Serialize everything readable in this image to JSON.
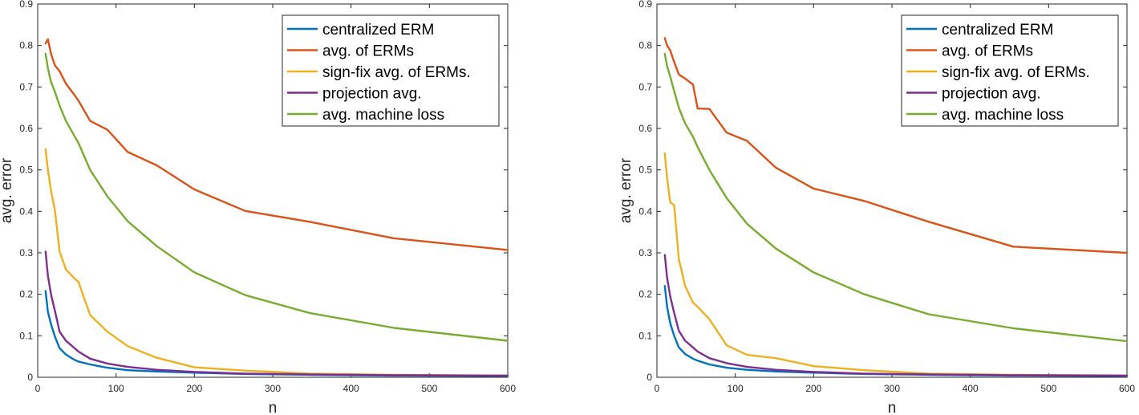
{
  "chart_data": [
    {
      "type": "line",
      "xlabel": "n",
      "ylabel": "avg. error",
      "xlim": [
        0,
        600
      ],
      "ylim": [
        0,
        0.9
      ],
      "xticks": [
        0,
        100,
        200,
        300,
        400,
        500,
        600
      ],
      "yticks": [
        0,
        0.1,
        0.2,
        0.3,
        0.4,
        0.5,
        0.6,
        0.7,
        0.8,
        0.9
      ],
      "grid": false,
      "legend_position": "top-right",
      "series": [
        {
          "name": "centralized ERM",
          "color": "#0072BD",
          "x": [
            10,
            13,
            17,
            22,
            28,
            36,
            46,
            52,
            67,
            89,
            115,
            152,
            200,
            265,
            347,
            455,
            600
          ],
          "y": [
            0.208,
            0.158,
            0.128,
            0.098,
            0.07,
            0.055,
            0.043,
            0.038,
            0.031,
            0.023,
            0.017,
            0.014,
            0.011,
            0.008,
            0.006,
            0.004,
            0.003
          ]
        },
        {
          "name": "avg. of ERMs",
          "color": "#D95319",
          "x": [
            10,
            13,
            17,
            22,
            28,
            36,
            46,
            52,
            67,
            89,
            115,
            152,
            200,
            265,
            347,
            455,
            600
          ],
          "y": [
            0.805,
            0.815,
            0.78,
            0.752,
            0.738,
            0.708,
            0.683,
            0.667,
            0.618,
            0.597,
            0.543,
            0.511,
            0.453,
            0.401,
            0.375,
            0.335,
            0.307
          ]
        },
        {
          "name": "sign-fix avg. of ERMs.",
          "color": "#EDB120",
          "x": [
            10,
            13,
            17,
            22,
            28,
            36,
            46,
            52,
            67,
            89,
            115,
            152,
            200,
            265,
            347,
            455,
            600
          ],
          "y": [
            0.55,
            0.5,
            0.45,
            0.402,
            0.303,
            0.26,
            0.24,
            0.23,
            0.15,
            0.11,
            0.075,
            0.047,
            0.024,
            0.016,
            0.009,
            0.006,
            0.004
          ]
        },
        {
          "name": "projection avg.",
          "color": "#7E2F8E",
          "x": [
            10,
            13,
            17,
            22,
            28,
            36,
            46,
            52,
            67,
            89,
            115,
            152,
            200,
            265,
            347,
            455,
            600
          ],
          "y": [
            0.303,
            0.245,
            0.2,
            0.16,
            0.11,
            0.088,
            0.072,
            0.062,
            0.045,
            0.033,
            0.025,
            0.018,
            0.013,
            0.009,
            0.007,
            0.005,
            0.004
          ]
        },
        {
          "name": "avg. machine loss",
          "color": "#77AC30",
          "x": [
            10,
            13,
            17,
            22,
            28,
            36,
            46,
            52,
            67,
            89,
            115,
            152,
            200,
            265,
            347,
            455,
            600
          ],
          "y": [
            0.78,
            0.745,
            0.712,
            0.688,
            0.655,
            0.618,
            0.585,
            0.565,
            0.5,
            0.436,
            0.376,
            0.316,
            0.253,
            0.198,
            0.155,
            0.119,
            0.088
          ]
        }
      ]
    },
    {
      "type": "line",
      "xlabel": "n",
      "ylabel": "avg. error",
      "xlim": [
        0,
        600
      ],
      "ylim": [
        0,
        0.9
      ],
      "xticks": [
        0,
        100,
        200,
        300,
        400,
        500,
        600
      ],
      "yticks": [
        0,
        0.1,
        0.2,
        0.3,
        0.4,
        0.5,
        0.6,
        0.7,
        0.8,
        0.9
      ],
      "grid": false,
      "legend_position": "top-right",
      "series": [
        {
          "name": "centralized ERM",
          "color": "#0072BD",
          "x": [
            10,
            13,
            17,
            22,
            28,
            36,
            46,
            52,
            67,
            89,
            115,
            152,
            200,
            265,
            347,
            455,
            600
          ],
          "y": [
            0.22,
            0.17,
            0.13,
            0.1,
            0.072,
            0.056,
            0.045,
            0.04,
            0.031,
            0.023,
            0.018,
            0.014,
            0.011,
            0.008,
            0.006,
            0.004,
            0.003
          ]
        },
        {
          "name": "avg. of ERMs",
          "color": "#D95319",
          "x": [
            10,
            13,
            17,
            22,
            28,
            36,
            46,
            52,
            67,
            89,
            115,
            152,
            200,
            265,
            347,
            455,
            600
          ],
          "y": [
            0.818,
            0.8,
            0.788,
            0.76,
            0.73,
            0.72,
            0.706,
            0.648,
            0.647,
            0.59,
            0.57,
            0.505,
            0.455,
            0.425,
            0.375,
            0.315,
            0.3
          ]
        },
        {
          "name": "sign-fix avg. of ERMs.",
          "color": "#EDB120",
          "x": [
            10,
            13,
            17,
            22,
            28,
            36,
            46,
            52,
            67,
            89,
            115,
            152,
            200,
            265,
            347,
            455,
            600
          ],
          "y": [
            0.54,
            0.48,
            0.422,
            0.415,
            0.285,
            0.22,
            0.18,
            0.17,
            0.14,
            0.077,
            0.054,
            0.046,
            0.027,
            0.017,
            0.009,
            0.006,
            0.004
          ]
        },
        {
          "name": "projection avg.",
          "color": "#7E2F8E",
          "x": [
            10,
            13,
            17,
            22,
            28,
            36,
            46,
            52,
            67,
            89,
            115,
            152,
            200,
            265,
            347,
            455,
            600
          ],
          "y": [
            0.295,
            0.24,
            0.195,
            0.155,
            0.112,
            0.088,
            0.072,
            0.062,
            0.046,
            0.034,
            0.025,
            0.018,
            0.013,
            0.009,
            0.007,
            0.005,
            0.004
          ]
        },
        {
          "name": "avg. machine loss",
          "color": "#77AC30",
          "x": [
            10,
            13,
            17,
            22,
            28,
            36,
            46,
            52,
            67,
            89,
            115,
            152,
            200,
            265,
            347,
            455,
            600
          ],
          "y": [
            0.78,
            0.75,
            0.725,
            0.69,
            0.65,
            0.612,
            0.58,
            0.555,
            0.5,
            0.432,
            0.37,
            0.31,
            0.253,
            0.2,
            0.152,
            0.118,
            0.087
          ]
        }
      ]
    }
  ]
}
